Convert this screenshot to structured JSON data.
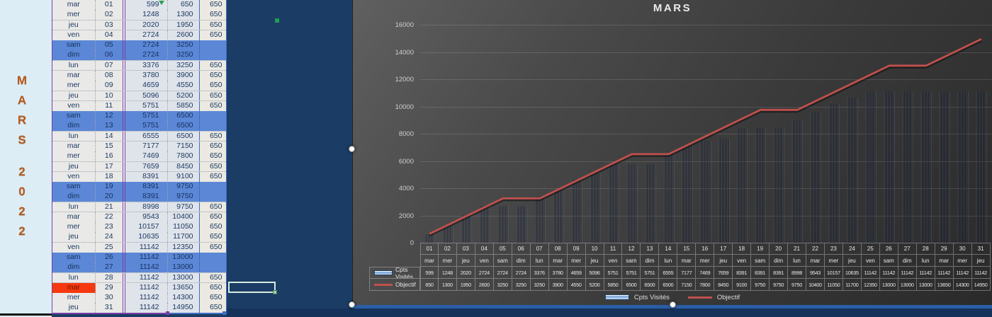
{
  "sidebar": {
    "month": "MARS",
    "year": "2022"
  },
  "sheet": {
    "extra_value": "650",
    "weekend_day_names": [
      "sam",
      "dim"
    ],
    "red_row_number": "29"
  },
  "chart_data": {
    "type": "combo",
    "title": "MARS",
    "categories": [
      "01",
      "02",
      "03",
      "04",
      "05",
      "06",
      "07",
      "08",
      "09",
      "10",
      "11",
      "12",
      "13",
      "14",
      "15",
      "16",
      "17",
      "18",
      "19",
      "20",
      "21",
      "22",
      "23",
      "24",
      "25",
      "26",
      "27",
      "28",
      "29",
      "30",
      "31"
    ],
    "category_days": [
      "mar",
      "mer",
      "jeu",
      "ven",
      "sam",
      "dim",
      "lun",
      "mar",
      "mer",
      "jeu",
      "ven",
      "sam",
      "dim",
      "lun",
      "mar",
      "mer",
      "jeu",
      "ven",
      "sam",
      "dim",
      "lun",
      "mar",
      "mer",
      "jeu",
      "ven",
      "sam",
      "dim",
      "lun",
      "mar",
      "mer",
      "jeu"
    ],
    "series": [
      {
        "name": "Cpts Visités",
        "type": "bar",
        "values": [
          599,
          1248,
          2020,
          2724,
          2724,
          2724,
          3376,
          3780,
          4659,
          5096,
          5751,
          5751,
          5751,
          6555,
          7177,
          7469,
          7659,
          8391,
          8391,
          8391,
          8998,
          9543,
          10157,
          10635,
          11142,
          11142,
          11142,
          11142,
          11142,
          11142,
          11142
        ]
      },
      {
        "name": "Objectif",
        "type": "line",
        "color": "#c0504d",
        "values": [
          650,
          1300,
          1950,
          2600,
          3250,
          3250,
          3250,
          3900,
          4550,
          5200,
          5850,
          6500,
          6500,
          6500,
          7150,
          7800,
          8450,
          9100,
          9750,
          9750,
          9750,
          10400,
          11050,
          11700,
          12350,
          13000,
          13000,
          13000,
          13650,
          14300,
          14950
        ]
      }
    ],
    "ylim": [
      0,
      16000
    ],
    "ytick_step": 2000,
    "grid": true,
    "legend_position": "bottom",
    "show_data_table": true
  },
  "colors": {
    "sheet_weekend_bg": "#5b87d6",
    "sheet_red_bg": "#f5380f",
    "range_purple": "#7a3fa8",
    "range_blue": "#3f6ec0",
    "navy_background": "#1b3c64",
    "cyan_bar": "#1fc0ec",
    "objectif_line": "#c0504d"
  }
}
